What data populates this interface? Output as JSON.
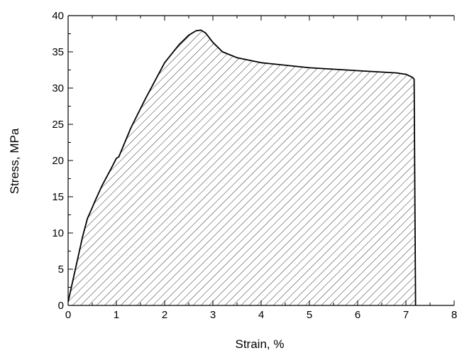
{
  "chart_data": {
    "type": "area",
    "title": "",
    "xlabel": "Strain, %",
    "ylabel": "Stress, MPa",
    "xlim": [
      0,
      8
    ],
    "ylim": [
      0,
      40
    ],
    "xticks": [
      "0",
      "1",
      "2",
      "3",
      "4",
      "5",
      "6",
      "7",
      "8"
    ],
    "yticks": [
      "0",
      "5",
      "10",
      "15",
      "20",
      "25",
      "30",
      "35",
      "40"
    ],
    "fill_pattern": "diagonal hatch",
    "grid": false,
    "series": [
      {
        "x": [
          0,
          0.1,
          0.2,
          0.3,
          0.4,
          0.5,
          0.55,
          0.7,
          0.9,
          1.0,
          1.05,
          1.3,
          1.6,
          2.0,
          2.3,
          2.5,
          2.65,
          2.75,
          2.85,
          3.0,
          3.2,
          3.5,
          4.0,
          5.0,
          6.0,
          6.8,
          7.0,
          7.1,
          7.15,
          7.17,
          7.2
        ],
        "y": [
          0.5,
          3.5,
          6.5,
          9.5,
          12.0,
          13.5,
          14.3,
          16.5,
          19.0,
          20.3,
          20.5,
          24.5,
          28.5,
          33.5,
          36.0,
          37.3,
          37.9,
          38.0,
          37.6,
          36.3,
          35.0,
          34.2,
          33.5,
          32.8,
          32.4,
          32.1,
          31.9,
          31.6,
          31.4,
          31.2,
          0
        ]
      }
    ]
  }
}
